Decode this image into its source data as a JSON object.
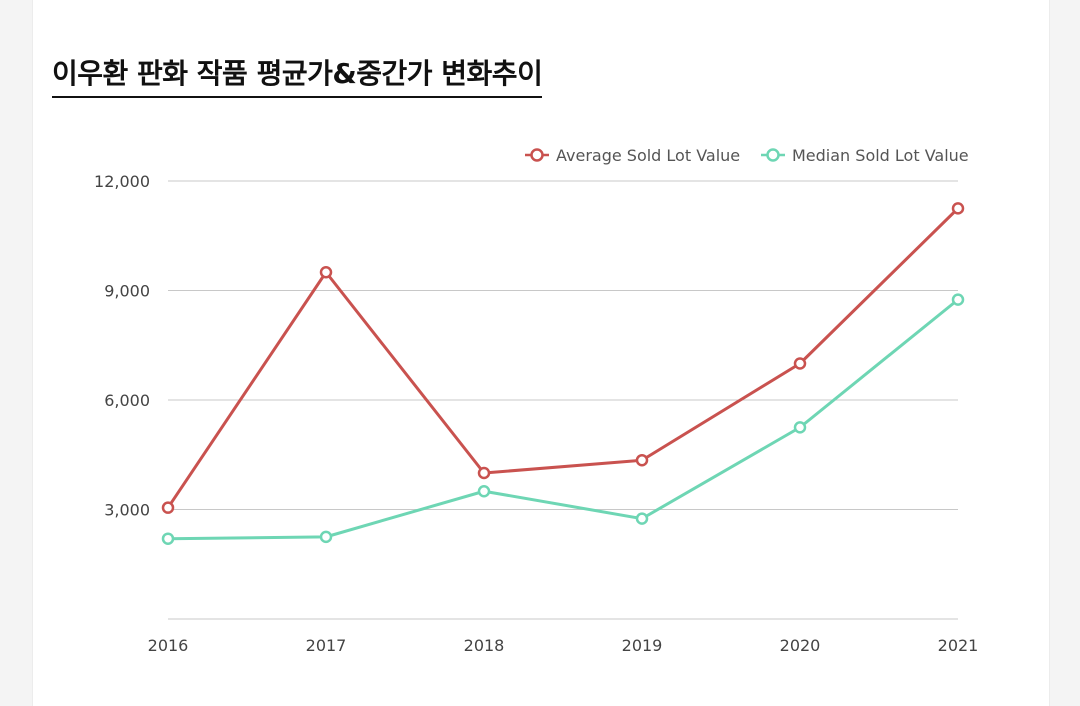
{
  "title": "이우환 판화 작품 평균가&중간가 변화추이",
  "chart_data": {
    "type": "line",
    "title": "이우환 판화 작품 평균가&중간가 변화추이",
    "categories": [
      "2016",
      "2017",
      "2018",
      "2019",
      "2020",
      "2021"
    ],
    "ylim": [
      0,
      12000
    ],
    "yticks": [
      3000,
      6000,
      9000,
      12000
    ],
    "ytick_labels": [
      "3,000",
      "6,000",
      "9,000",
      "12,000"
    ],
    "grid": true,
    "legend_position": "top-right",
    "series": [
      {
        "name": "Average Sold Lot Value",
        "color": "#c9524f",
        "values": [
          3050,
          9500,
          4000,
          4350,
          7000,
          11250
        ]
      },
      {
        "name": "Median Sold Lot Value",
        "color": "#6ed6b4",
        "values": [
          2200,
          2250,
          3500,
          2750,
          5250,
          8750
        ]
      }
    ]
  }
}
